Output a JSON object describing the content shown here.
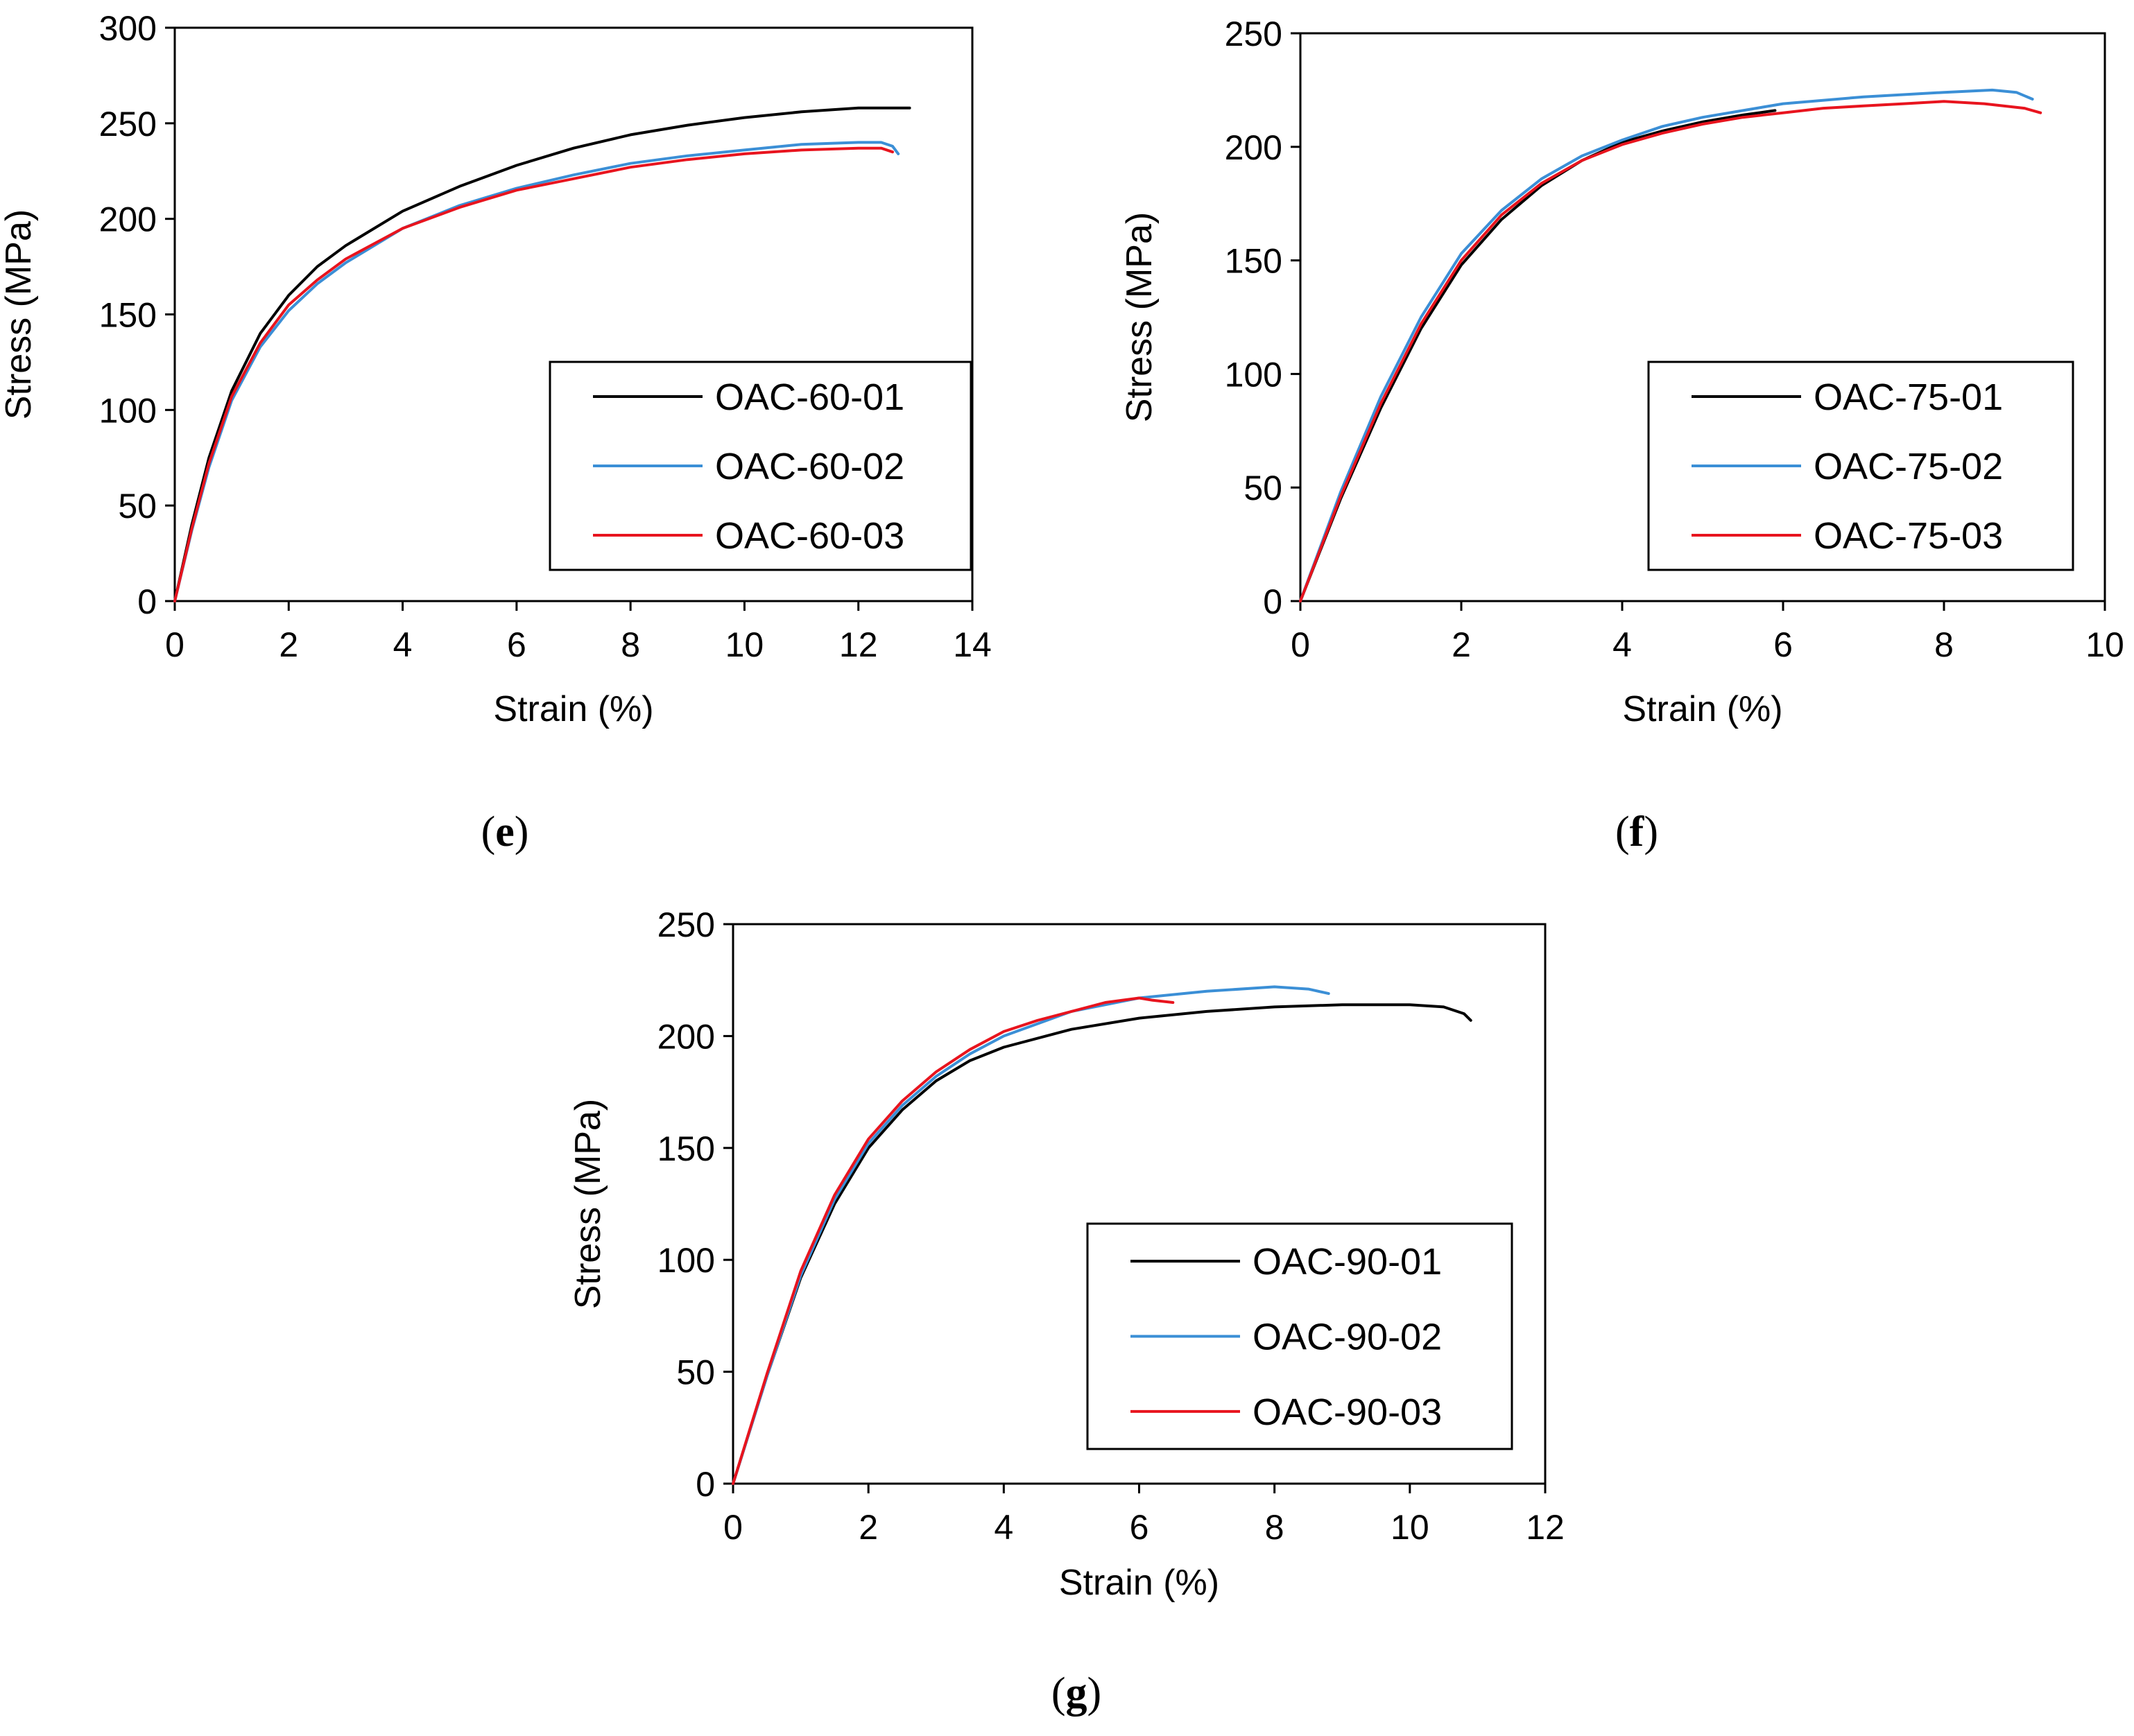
{
  "chart_data": [
    {
      "id": "e",
      "type": "line",
      "panel_label": "(e)",
      "xlabel": "Strain (%)",
      "ylabel": "Stress (MPa)",
      "xlim": [
        0,
        14
      ],
      "ylim": [
        0,
        300
      ],
      "xticks": [
        0,
        2,
        4,
        6,
        8,
        10,
        12,
        14
      ],
      "yticks": [
        0,
        50,
        100,
        150,
        200,
        250,
        300
      ],
      "legend_position": "lower-right",
      "series": [
        {
          "name": "OAC-60-01",
          "color": "#000000",
          "x": [
            0,
            0.3,
            0.6,
            1.0,
            1.5,
            2.0,
            2.5,
            3,
            4,
            5,
            6,
            7,
            8,
            9,
            10,
            11,
            12,
            12.5,
            12.9
          ],
          "y": [
            0,
            40,
            75,
            110,
            140,
            160,
            175,
            186,
            204,
            217,
            228,
            237,
            244,
            249,
            253,
            256,
            258,
            258,
            258
          ]
        },
        {
          "name": "OAC-60-02",
          "color": "#3b8fd6",
          "x": [
            0,
            0.3,
            0.6,
            1.0,
            1.5,
            2.0,
            2.5,
            3,
            4,
            5,
            6,
            7,
            8,
            9,
            10,
            11,
            12,
            12.4,
            12.6,
            12.7
          ],
          "y": [
            0,
            37,
            70,
            105,
            133,
            152,
            166,
            177,
            195,
            207,
            216,
            223,
            229,
            233,
            236,
            239,
            240,
            240,
            238,
            234
          ]
        },
        {
          "name": "OAC-60-03",
          "color": "#e8141e",
          "x": [
            0,
            0.3,
            0.6,
            1.0,
            1.5,
            2.0,
            2.5,
            3,
            4,
            5,
            6,
            7,
            8,
            9,
            10,
            11,
            12,
            12.4,
            12.6
          ],
          "y": [
            0,
            38,
            72,
            107,
            135,
            155,
            168,
            179,
            195,
            206,
            215,
            221,
            227,
            231,
            234,
            236,
            237,
            237,
            235
          ]
        }
      ]
    },
    {
      "id": "f",
      "type": "line",
      "panel_label": "(f)",
      "xlabel": "Strain (%)",
      "ylabel": "Stress (MPa)",
      "xlim": [
        0,
        10
      ],
      "ylim": [
        0,
        250
      ],
      "xticks": [
        0,
        2,
        4,
        6,
        8,
        10
      ],
      "yticks": [
        0,
        50,
        100,
        150,
        200,
        250
      ],
      "legend_position": "lower-right",
      "series": [
        {
          "name": "OAC-75-01",
          "color": "#000000",
          "x": [
            0,
            0.5,
            1.0,
            1.5,
            2.0,
            2.5,
            3.0,
            3.5,
            4.0,
            4.5,
            5.0,
            5.5,
            5.9
          ],
          "y": [
            0,
            45,
            85,
            120,
            148,
            168,
            183,
            194,
            202,
            207,
            211,
            214,
            216
          ]
        },
        {
          "name": "OAC-75-02",
          "color": "#3b8fd6",
          "x": [
            0,
            0.5,
            1.0,
            1.5,
            2.0,
            2.5,
            3.0,
            3.5,
            4.0,
            4.5,
            5.0,
            6.0,
            7.0,
            8.0,
            8.6,
            8.9,
            9.1
          ],
          "y": [
            0,
            48,
            90,
            125,
            153,
            172,
            186,
            196,
            203,
            209,
            213,
            219,
            222,
            224,
            225,
            224,
            221
          ]
        },
        {
          "name": "OAC-75-03",
          "color": "#e8141e",
          "x": [
            0,
            0.5,
            1.0,
            1.5,
            2.0,
            2.5,
            3.0,
            3.5,
            4.0,
            4.5,
            5.0,
            5.5,
            6.0,
            6.5,
            7.0,
            7.5,
            8.0,
            8.5,
            9.0,
            9.2
          ],
          "y": [
            0,
            46,
            87,
            122,
            150,
            170,
            184,
            194,
            201,
            206,
            210,
            213,
            215,
            217,
            218,
            219,
            220,
            219,
            217,
            215
          ]
        }
      ]
    },
    {
      "id": "g",
      "type": "line",
      "panel_label": "(g)",
      "xlabel": "Strain (%)",
      "ylabel": "Stress (MPa)",
      "xlim": [
        0,
        12
      ],
      "ylim": [
        0,
        250
      ],
      "xticks": [
        0,
        2,
        4,
        6,
        8,
        10,
        12
      ],
      "yticks": [
        0,
        50,
        100,
        150,
        200,
        250
      ],
      "legend_position": "lower-right",
      "series": [
        {
          "name": "OAC-90-01",
          "color": "#000000",
          "x": [
            0,
            0.5,
            1.0,
            1.5,
            2.0,
            2.5,
            3.0,
            3.5,
            4.0,
            5.0,
            6.0,
            7.0,
            8.0,
            9.0,
            10.0,
            10.5,
            10.8,
            10.9
          ],
          "y": [
            0,
            48,
            92,
            125,
            150,
            167,
            180,
            189,
            195,
            203,
            208,
            211,
            213,
            214,
            214,
            213,
            210,
            207
          ]
        },
        {
          "name": "OAC-90-02",
          "color": "#3b8fd6",
          "x": [
            0,
            0.5,
            1.0,
            1.5,
            2.0,
            2.5,
            3.0,
            3.5,
            4.0,
            5.0,
            6.0,
            7.0,
            8.0,
            8.5,
            8.8
          ],
          "y": [
            0,
            48,
            93,
            127,
            152,
            169,
            182,
            192,
            200,
            211,
            217,
            220,
            222,
            221,
            219
          ]
        },
        {
          "name": "OAC-90-03",
          "color": "#e8141e",
          "x": [
            0,
            0.5,
            1.0,
            1.5,
            2.0,
            2.5,
            3.0,
            3.5,
            4.0,
            4.5,
            5.0,
            5.5,
            6.0,
            6.2,
            6.5
          ],
          "y": [
            0,
            49,
            95,
            129,
            154,
            171,
            184,
            194,
            202,
            207,
            211,
            215,
            217,
            216,
            215
          ]
        }
      ]
    }
  ]
}
